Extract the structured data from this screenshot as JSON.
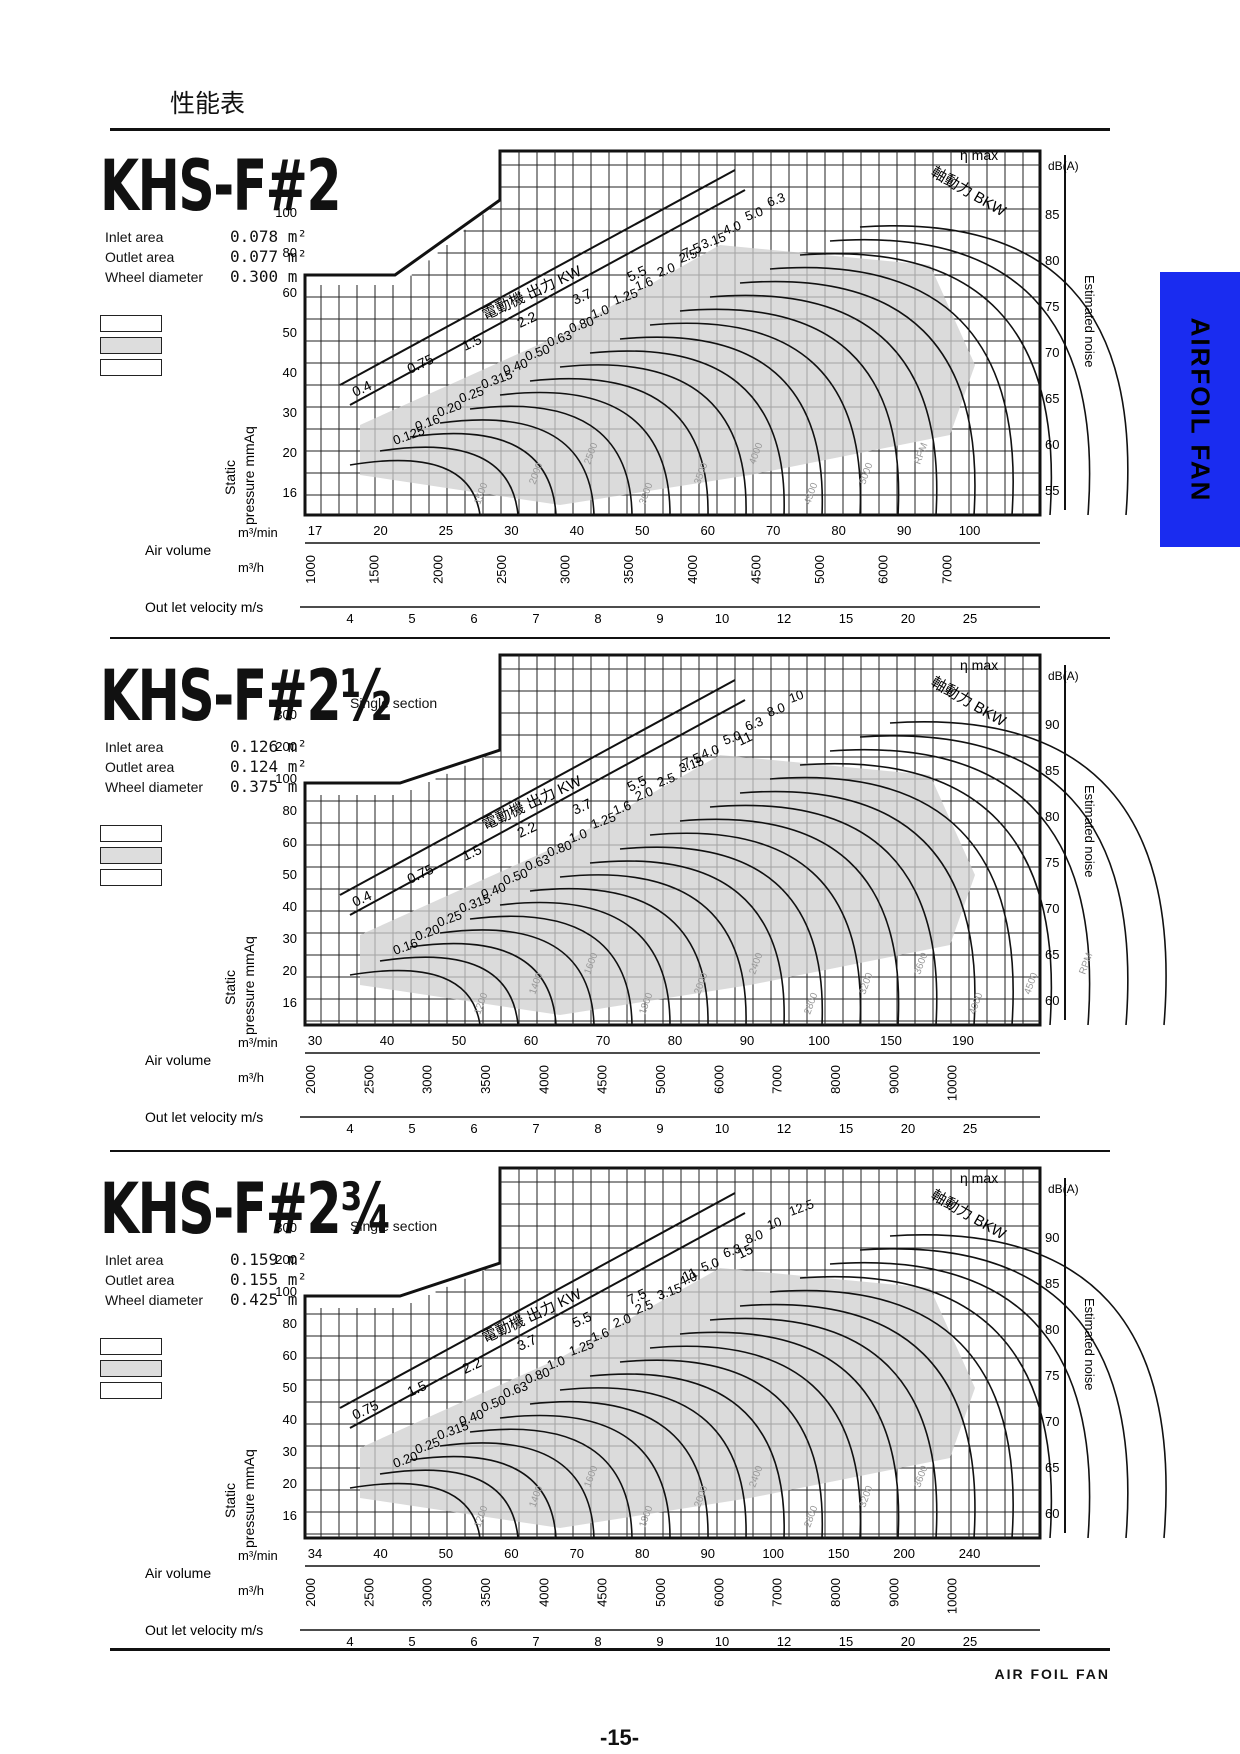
{
  "page": {
    "heading": "性能表",
    "side_tab": "AIRFOIL FAN",
    "footer": "AIR FOIL FAN",
    "page_number": "-15-"
  },
  "common": {
    "y_label_1": "Static",
    "y_label_2": "pressure mmAq",
    "air_volume": "Air volume",
    "unit_min": "m³/min",
    "unit_h": "m³/h",
    "velocity": "Out let velocity m/s",
    "noise_label": "Estimated noise",
    "db_unit": "dB(A)",
    "eta_max": "η max",
    "bkw": "軸動力 BKW",
    "motor": "電動機 出力 KW",
    "inlet": "Inlet area",
    "outlet": "Outlet area",
    "wheel": "Wheel diameter",
    "single_section": "Single section"
  },
  "chart_data": [
    {
      "type": "line",
      "model": "KHS-F#2",
      "inlet_area": "0.078 m²",
      "outlet_area": "0.077 m²",
      "wheel_diameter": "0.300 m",
      "x_min_ticks": [
        "17",
        "20",
        "25",
        "30",
        "40",
        "50",
        "60",
        "70",
        "80",
        "90",
        "100"
      ],
      "x_h_ticks": [
        "1000",
        "1500",
        "2000",
        "2500",
        "3000",
        "3500",
        "4000",
        "4500",
        "5000",
        "6000",
        "7000"
      ],
      "velocity_ticks": [
        "4",
        "5",
        "6",
        "7",
        "8",
        "9",
        "10",
        "12",
        "15",
        "20",
        "25"
      ],
      "y_ticks": [
        "16",
        "20",
        "30",
        "40",
        "50",
        "60",
        "80",
        "100"
      ],
      "db_ticks": [
        "55",
        "60",
        "65",
        "70",
        "75",
        "80",
        "85"
      ],
      "motor_kw": [
        "0.4",
        "0.75",
        "1.5",
        "2.2",
        "3.7",
        "5.5",
        "7.5"
      ],
      "bkw_values": [
        "0.125",
        "0.16",
        "0.20",
        "0.25",
        "0.315",
        "0.40",
        "0.50",
        "0.63",
        "0.80",
        "1.0",
        "1.25",
        "1.6",
        "2.0",
        "2.5",
        "3.15",
        "4.0",
        "5.0",
        "6.3"
      ],
      "rpm_values": [
        "1500",
        "2000",
        "2500",
        "3000",
        "3500",
        "4000",
        "4500",
        "5000",
        "RPM"
      ]
    },
    {
      "type": "line",
      "model": "KHS-F#2½",
      "inlet_area": "0.126 m²",
      "outlet_area": "0.124 m²",
      "wheel_diameter": "0.375 m",
      "single_section": true,
      "x_min_ticks": [
        "30",
        "40",
        "50",
        "60",
        "70",
        "80",
        "90",
        "100",
        "150",
        "190"
      ],
      "x_h_ticks": [
        "2000",
        "2500",
        "3000",
        "3500",
        "4000",
        "4500",
        "5000",
        "6000",
        "7000",
        "8000",
        "9000",
        "10000"
      ],
      "velocity_ticks": [
        "4",
        "5",
        "6",
        "7",
        "8",
        "9",
        "10",
        "12",
        "15",
        "20",
        "25"
      ],
      "y_ticks": [
        "16",
        "20",
        "30",
        "40",
        "50",
        "60",
        "80",
        "100",
        "200",
        "300"
      ],
      "db_ticks": [
        "60",
        "65",
        "70",
        "75",
        "80",
        "85",
        "90"
      ],
      "motor_kw": [
        "0.4",
        "0.75",
        "1.5",
        "2.2",
        "3.7",
        "5.5",
        "7.5",
        "11"
      ],
      "bkw_values": [
        "0.16",
        "0.20",
        "0.25",
        "0.315",
        "0.40",
        "0.50",
        "0.63",
        "0.80",
        "1.0",
        "1.25",
        "1.6",
        "2.0",
        "2.5",
        "3.15",
        "4.0",
        "5.0",
        "6.3",
        "8.0",
        "10"
      ],
      "rpm_values": [
        "1200",
        "1400",
        "1600",
        "1800",
        "2000",
        "2400",
        "2800",
        "3200",
        "3600",
        "4000",
        "4500",
        "RPM"
      ]
    },
    {
      "type": "line",
      "model": "KHS-F#2¾",
      "inlet_area": "0.159 m²",
      "outlet_area": "0.155 m²",
      "wheel_diameter": "0.425 m",
      "single_section": true,
      "x_min_ticks": [
        "34",
        "40",
        "50",
        "60",
        "70",
        "80",
        "90",
        "100",
        "150",
        "200",
        "240"
      ],
      "x_h_ticks": [
        "2000",
        "2500",
        "3000",
        "3500",
        "4000",
        "4500",
        "5000",
        "6000",
        "7000",
        "8000",
        "9000",
        "10000"
      ],
      "velocity_ticks": [
        "4",
        "5",
        "6",
        "7",
        "8",
        "9",
        "10",
        "12",
        "15",
        "20",
        "25"
      ],
      "y_ticks": [
        "16",
        "20",
        "30",
        "40",
        "50",
        "60",
        "80",
        "100",
        "200",
        "300"
      ],
      "db_ticks": [
        "60",
        "65",
        "70",
        "75",
        "80",
        "85",
        "90"
      ],
      "motor_kw": [
        "0.75",
        "1.5",
        "2.2",
        "3.7",
        "5.5",
        "7.5",
        "11",
        "15"
      ],
      "bkw_values": [
        "0.20",
        "0.25",
        "0.315",
        "0.40",
        "0.50",
        "0.63",
        "0.80",
        "1.0",
        "1.25",
        "1.6",
        "2.0",
        "2.5",
        "3.15",
        "4.0",
        "5.0",
        "6.3",
        "8.0",
        "10",
        "12.5"
      ],
      "rpm_values": [
        "1200",
        "1400",
        "1600",
        "1800",
        "2000",
        "2400",
        "2800",
        "3200",
        "3600"
      ]
    }
  ]
}
